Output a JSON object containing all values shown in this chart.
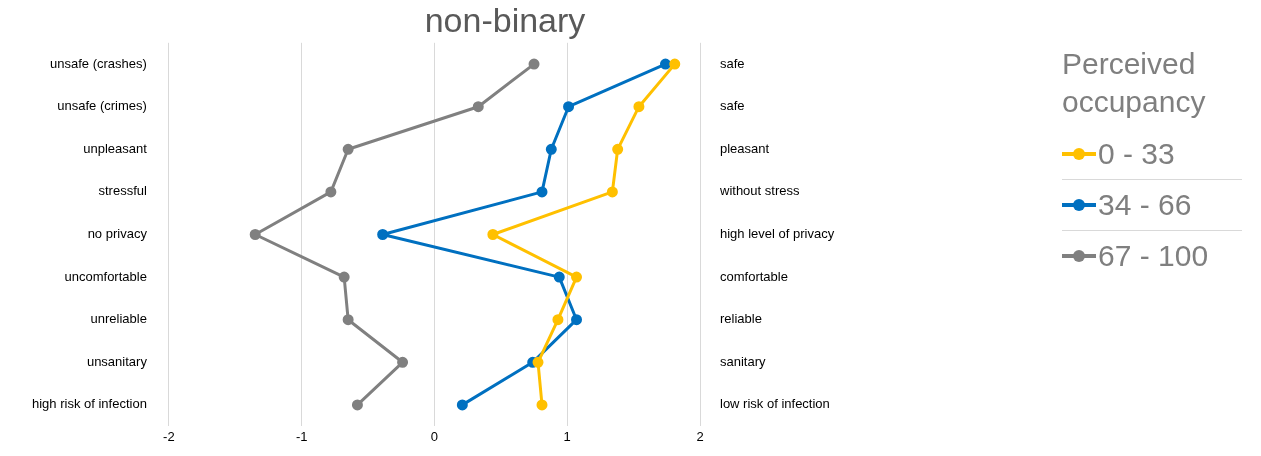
{
  "chart_data": {
    "type": "line",
    "orientation": "horizontal",
    "title": "non-binary",
    "legend_title": "Perceived occupancy",
    "legend": "right",
    "grid": "x",
    "marker": "circle",
    "line_style": "solid",
    "categories": [
      "unsafe (crashes)",
      "unsafe (crimes)",
      "unpleasant",
      "stressful",
      "no privacy",
      "uncomfortable",
      "unreliable",
      "unsanitary",
      "high risk of infection"
    ],
    "y2_categories": [
      "safe",
      "safe",
      "pleasant",
      "without stress",
      "high level of privacy",
      "comfortable",
      "reliable",
      "sanitary",
      "low risk of infection"
    ],
    "xlim": [
      -2,
      2
    ],
    "xticks": [
      -2,
      -1,
      0,
      1,
      2
    ],
    "series": [
      {
        "name": "0 - 33",
        "color": "#ffc000",
        "values": [
          1.81,
          1.54,
          1.38,
          1.34,
          0.44,
          1.07,
          0.93,
          0.78,
          0.81
        ]
      },
      {
        "name": "34 - 66",
        "color": "#0070c0",
        "values": [
          1.74,
          1.01,
          0.88,
          0.81,
          -0.39,
          0.94,
          1.07,
          0.74,
          0.21
        ]
      },
      {
        "name": "67 - 100",
        "color": "#808080",
        "values": [
          0.75,
          0.33,
          -0.65,
          -0.78,
          -1.35,
          -0.68,
          -0.65,
          -0.24,
          -0.58
        ]
      }
    ]
  }
}
